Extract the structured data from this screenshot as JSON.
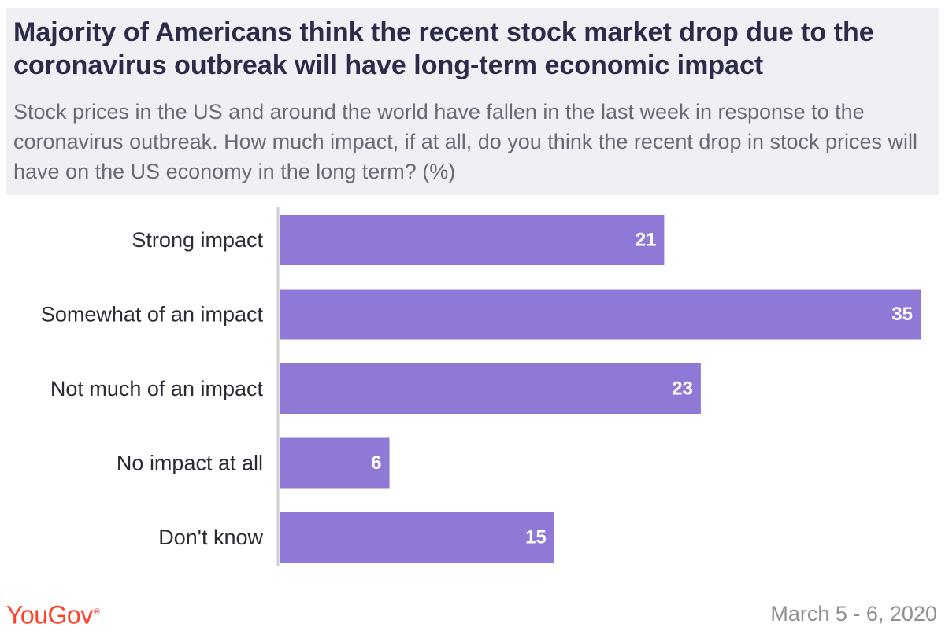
{
  "header": {
    "title": "Majority of Americans think the recent stock market drop due to the coronavirus outbreak will have long-term economic impact",
    "subtitle": "Stock prices in the US and around the world have fallen in the last week in response to the coronavirus outbreak. How much impact, if at all, do you think the recent drop in stock prices will have on the US economy in the long term? (%)"
  },
  "chart_data": {
    "type": "bar",
    "orientation": "horizontal",
    "categories": [
      "Strong impact",
      "Somewhat of an impact",
      "Not much of an impact",
      "No impact at all",
      "Don't know"
    ],
    "values": [
      21,
      35,
      23,
      6,
      15
    ],
    "xlim": [
      0,
      35
    ],
    "grid": false,
    "legend": "none",
    "bar_color": "#9079d6",
    "value_label_color": "#ffffff"
  },
  "footer": {
    "logo_text": "YouGov",
    "date": "March 5 - 6, 2020"
  },
  "colors": {
    "brand": "#ff412c",
    "header_bg": "#efeff4",
    "title": "#2c2b49",
    "subtitle": "#6a6a76",
    "axis": "#cfcfcf"
  }
}
